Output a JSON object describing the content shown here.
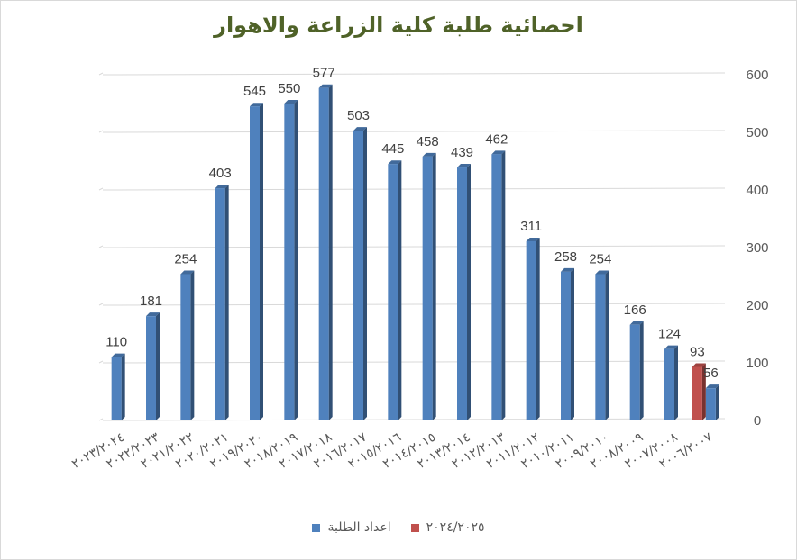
{
  "chart_data": {
    "type": "bar",
    "title": "احصائية طلبة كلية الزراعة والاهوار",
    "categories": [
      "٢٠٢٣/٢٠٢٤",
      "٢٠٢٢/٢٠٢٣",
      "٢٠٢١/٢٠٢٢",
      "٢٠٢٠/٢٠٢١",
      "٢٠١٩/٢٠٢٠",
      "٢٠١٨/٢٠١٩",
      "٢٠١٧/٢٠١٨",
      "٢٠١٦/٢٠١٧",
      "٢٠١٥/٢٠١٦",
      "٢٠١٤/٢٠١٥",
      "٢٠١٣/٢٠١٤",
      "٢٠١٢/٢٠١٣",
      "٢٠١١/٢٠١٢",
      "٢٠١٠/٢٠١١",
      "٢٠٠٩/٢٠١٠",
      "٢٠٠٨/٢٠٠٩",
      "٢٠٠٧/٢٠٠٨",
      "٢٠٠٦/٢٠٠٧"
    ],
    "series": [
      {
        "name": "اعداد الطلبة",
        "color": "#4f81bd",
        "values": [
          110,
          181,
          254,
          403,
          545,
          550,
          577,
          503,
          445,
          458,
          439,
          462,
          311,
          258,
          254,
          166,
          124,
          56
        ]
      },
      {
        "name": "٢٠٢٤/٢٠٢٥",
        "color": "#c0504d",
        "values": [
          null,
          null,
          null,
          null,
          null,
          null,
          null,
          null,
          null,
          null,
          null,
          null,
          null,
          null,
          null,
          null,
          null,
          93
        ]
      }
    ],
    "ylim": [
      0,
      600
    ],
    "yticks": [
      0,
      100,
      200,
      300,
      400,
      500,
      600
    ],
    "y_axis_side": "right",
    "gridlines": true,
    "legend": "bottom",
    "xlabel": "",
    "ylabel": ""
  }
}
